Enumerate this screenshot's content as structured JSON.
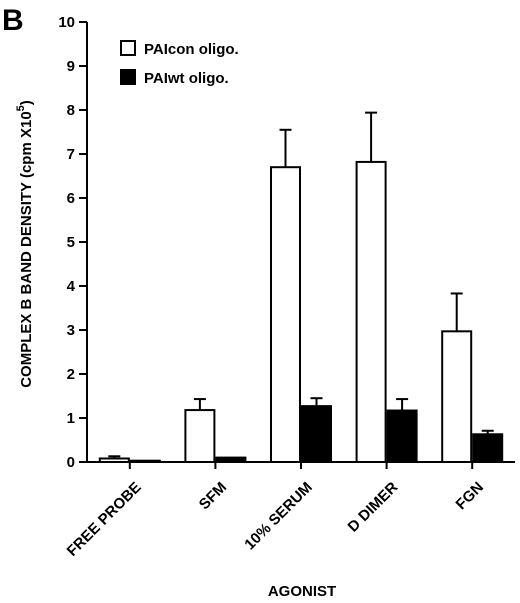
{
  "panel_label": "B",
  "chart_data": {
    "type": "bar",
    "categories": [
      "FREE PROBE",
      "SFM",
      "10% SERUM",
      "D DIMER",
      "FGN"
    ],
    "series": [
      {
        "name": "PAIcon oligo.",
        "fill": "#ffffff",
        "values": [
          0.08,
          1.18,
          6.7,
          6.82,
          2.97
        ],
        "errors": [
          0.05,
          0.25,
          0.85,
          1.12,
          0.86
        ]
      },
      {
        "name": "PAIwt oligo.",
        "fill": "#000000",
        "values": [
          0.03,
          0.1,
          1.27,
          1.17,
          0.63
        ],
        "errors": [
          0.0,
          0.0,
          0.18,
          0.26,
          0.08
        ]
      }
    ],
    "ylim": [
      0,
      10
    ],
    "yticks": [
      "0",
      "1",
      "2",
      "3",
      "4",
      "5",
      "6",
      "7",
      "8",
      "9",
      "10"
    ],
    "ylabel": "COMPLEX B BAND DENSITY (cpm X10",
    "ylabel_sup": "5",
    "ylabel_close": ")",
    "xlabel": "AGONIST",
    "legend_position": "top-left",
    "grid": false
  }
}
